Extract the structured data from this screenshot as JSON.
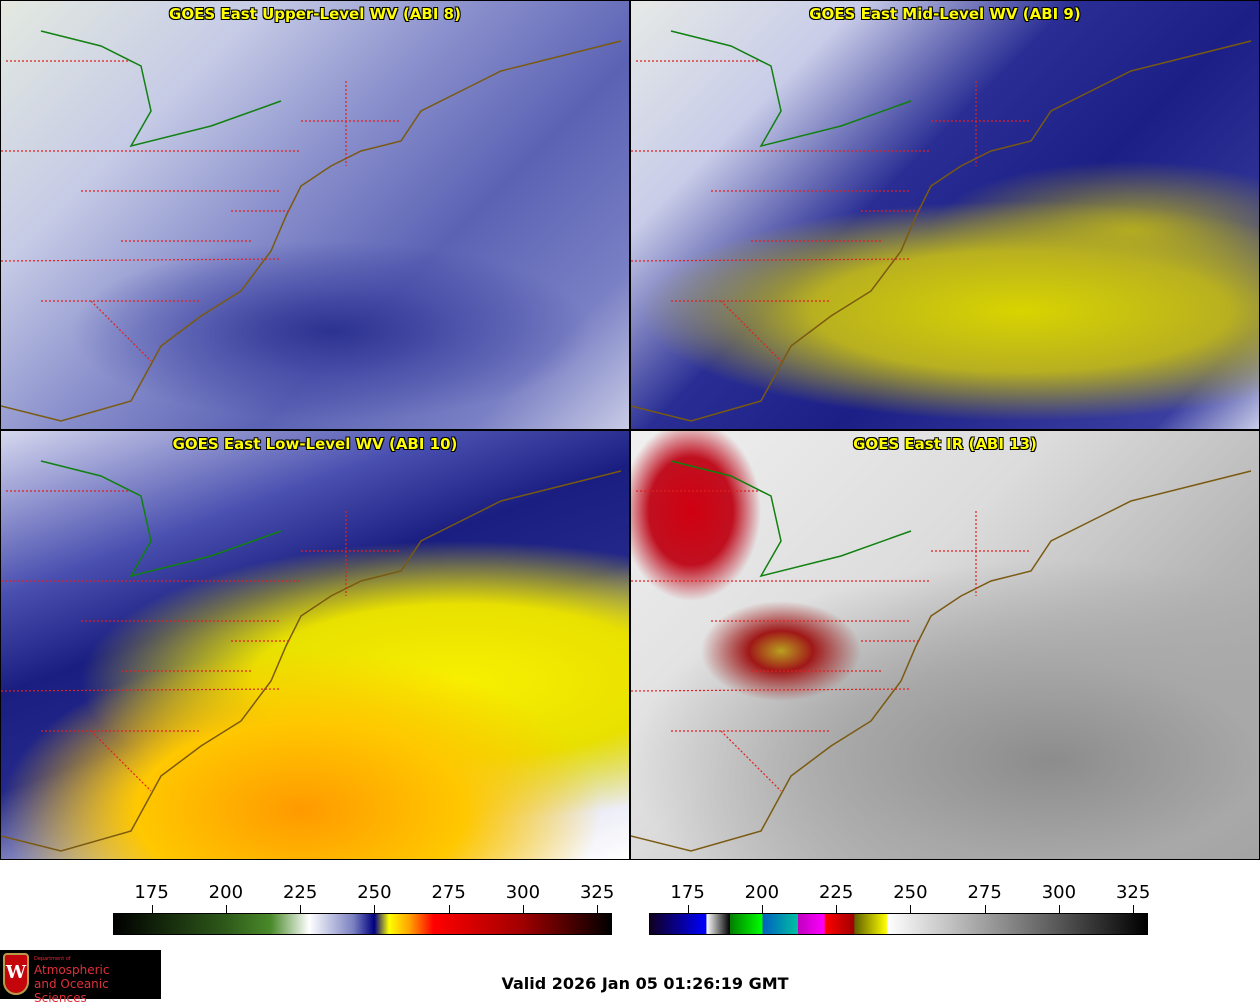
{
  "panels": [
    {
      "title": "GOES East Upper-Level WV (ABI 8)"
    },
    {
      "title": "GOES East Mid-Level WV (ABI 9)"
    },
    {
      "title": "GOES East Low-Level WV (ABI 10)"
    },
    {
      "title": "GOES East IR (ABI 13)"
    }
  ],
  "colorbars": [
    {
      "name": "wv",
      "range": [
        162,
        330
      ],
      "ticks": [
        "175",
        "200",
        "225",
        "250",
        "275",
        "300",
        "325"
      ],
      "stops": [
        [
          162,
          "#000000"
        ],
        [
          200,
          "#2e5a1a"
        ],
        [
          215,
          "#4a8a2a"
        ],
        [
          228,
          "#ffffff"
        ],
        [
          243,
          "#7a80c0"
        ],
        [
          250,
          "#000080"
        ],
        [
          255,
          "#ffff00"
        ],
        [
          262,
          "#ffa000"
        ],
        [
          270,
          "#ff0000"
        ],
        [
          300,
          "#a00000"
        ],
        [
          330,
          "#000000"
        ]
      ]
    },
    {
      "name": "ir",
      "range": [
        162,
        330
      ],
      "ticks": [
        "175",
        "200",
        "225",
        "250",
        "275",
        "300",
        "325"
      ],
      "stops": [
        [
          162,
          "#100020"
        ],
        [
          181,
          "#0000ff"
        ],
        [
          181.1,
          "#ffffff"
        ],
        [
          189,
          "#000000"
        ],
        [
          189.1,
          "#008000"
        ],
        [
          200,
          "#00ff00"
        ],
        [
          200.1,
          "#0060c0"
        ],
        [
          212,
          "#00c0a0"
        ],
        [
          212.1,
          "#c000c0"
        ],
        [
          221,
          "#ff00ff"
        ],
        [
          221.1,
          "#ff0000"
        ],
        [
          231,
          "#a00000"
        ],
        [
          231.1,
          "#606000"
        ],
        [
          242,
          "#ffff00"
        ],
        [
          242.1,
          "#ffffff"
        ],
        [
          330,
          "#000000"
        ]
      ]
    }
  ],
  "logo": {
    "line1": "Department of",
    "line2": "Atmospheric",
    "line3": "and Oceanic Sciences"
  },
  "valid": "Valid 2026 Jan 05 01:26:19 GMT"
}
